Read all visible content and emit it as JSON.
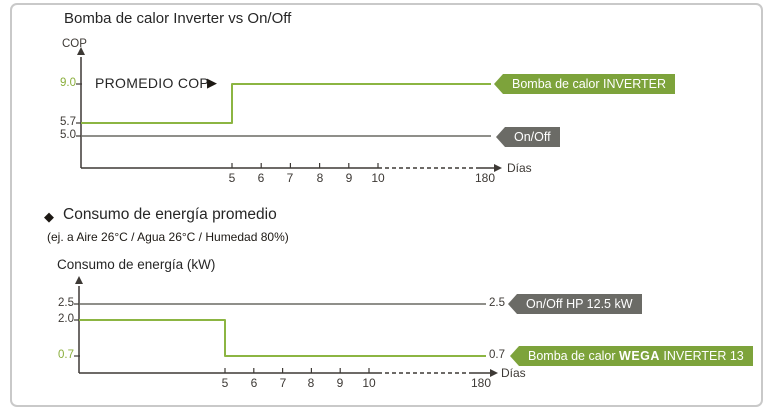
{
  "colors": {
    "green_line": "#8cb542",
    "green_tag": "#7da33b",
    "green_text": "#8aae3c",
    "gray_line": "#6a6a64",
    "gray_tag": "#6b6b66",
    "axis": "#3d3935",
    "text": "#262626",
    "panel_border": "#c9c9c9"
  },
  "section1": {
    "title": "Bomba de calor Inverter vs On/Off",
    "annotation": "PROMEDIO COP",
    "annotation_arrow": "▶"
  },
  "section2": {
    "bullet": "◆",
    "title": "Consumo de energía promedio",
    "subtitle": "(ej. a Aire 26°C / Agua 26°C / Humedad 80%)"
  },
  "chart_data": [
    {
      "type": "line",
      "title": "Bomba de calor Inverter vs On/Off",
      "ylabel": "COP",
      "xlabel": "Días",
      "x_axis_note": "axis dashed (broken) between day 10 and day 180, arrow at end",
      "x_ticks": [
        "5",
        "6",
        "7",
        "8",
        "9",
        "10",
        "180"
      ],
      "y_ticks": [
        "9.0",
        "5.7",
        "5.0"
      ],
      "xlim": [
        0,
        180
      ],
      "series": [
        {
          "name": "Bomba de calor INVERTER",
          "color": "#8cb542",
          "x": [
            0,
            5,
            5,
            180
          ],
          "y": [
            5.7,
            5.7,
            9.0,
            9.0
          ],
          "tag": "Bomba de calor INVERTER"
        },
        {
          "name": "On/Off",
          "color": "#6a6a64",
          "x": [
            0,
            180
          ],
          "y": [
            5.0,
            5.0
          ],
          "tag": "On/Off"
        }
      ]
    },
    {
      "type": "line",
      "title": "Consumo de energía (kW)",
      "ylabel": "Consumo de energía (kW)",
      "xlabel": "Días",
      "x_axis_note": "axis dashed (broken) between day 10 and day 180, arrow at end",
      "x_ticks": [
        "5",
        "6",
        "7",
        "8",
        "9",
        "10",
        "180"
      ],
      "y_ticks": [
        "2.5",
        "2.0",
        "0.7"
      ],
      "xlim": [
        0,
        180
      ],
      "series": [
        {
          "name": "On/Off HP 12.5 kW",
          "color": "#6a6a64",
          "x": [
            0,
            180
          ],
          "y": [
            2.5,
            2.5
          ],
          "end_label": "2.5",
          "tag": "On/Off HP 12.5 kW"
        },
        {
          "name": "Bomba de calor WEGA INVERTER 13",
          "color": "#8cb542",
          "x": [
            0,
            5,
            5,
            180
          ],
          "y": [
            2.0,
            2.0,
            0.7,
            0.7
          ],
          "end_label": "0.7",
          "tag_parts": [
            "Bomba de calor ",
            "WEGA",
            " INVERTER 13"
          ]
        }
      ]
    }
  ]
}
